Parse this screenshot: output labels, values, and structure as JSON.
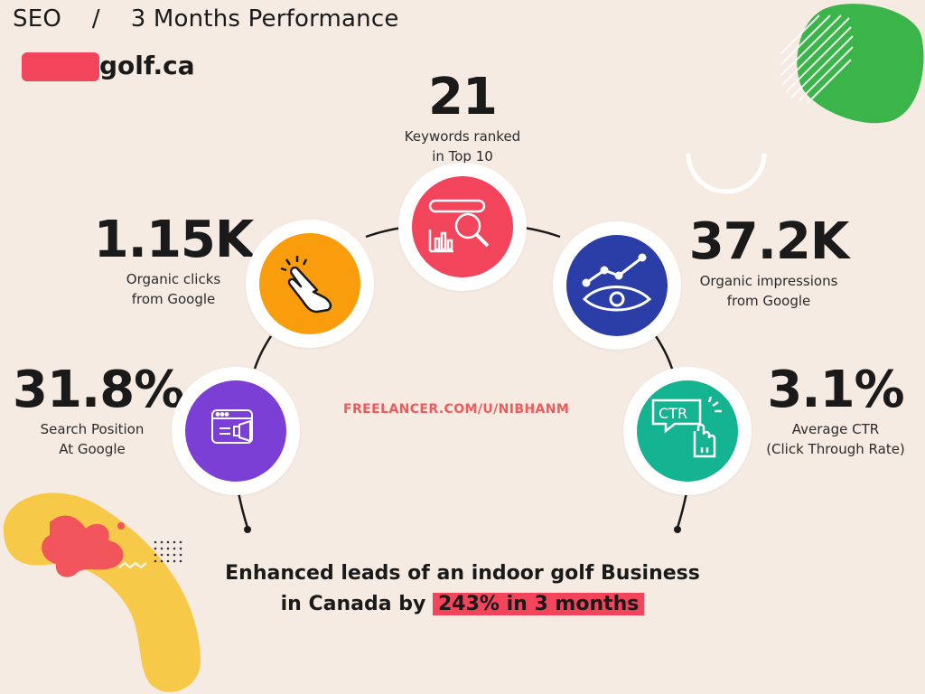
{
  "header": {
    "section": "SEO",
    "separator": "/",
    "subtitle": "3 Months Performance",
    "domain_suffix": "golf.ca"
  },
  "stats": {
    "keywords": {
      "value": "21",
      "line1": "Keywords ranked",
      "line2": "in Top 10",
      "icon": "search-analytics-icon",
      "color": "#f2445a"
    },
    "clicks": {
      "value": "1.15K",
      "line1": "Organic clicks",
      "line2": "from Google",
      "icon": "pointer-click-icon",
      "color": "#f99d0c"
    },
    "impressions": {
      "value": "37.2K",
      "line1": "Organic impressions",
      "line2": "from Google",
      "icon": "eye-chart-icon",
      "color": "#2b3ea8"
    },
    "position": {
      "value": "31.8%",
      "line1": "Search Position",
      "line2": "At Google",
      "icon": "browser-megaphone-icon",
      "color": "#7b3fd6"
    },
    "ctr": {
      "value": "3.1%",
      "line1": "Average CTR",
      "line2": "(Click Through Rate)",
      "icon": "ctr-click-icon",
      "color": "#14b391",
      "icon_text": "CTR"
    }
  },
  "watermark": "FREELANCER.COM/U/NIBHANM",
  "footer": {
    "line1": "Enhanced leads of an indoor golf Business",
    "line2_prefix": "in Canada by ",
    "highlight": "243% in 3 months"
  },
  "colors": {
    "background": "#f5ebe2",
    "accent_red": "#f2445a",
    "green_blob": "#3bb54a",
    "yellow_blob": "#f7c948"
  }
}
